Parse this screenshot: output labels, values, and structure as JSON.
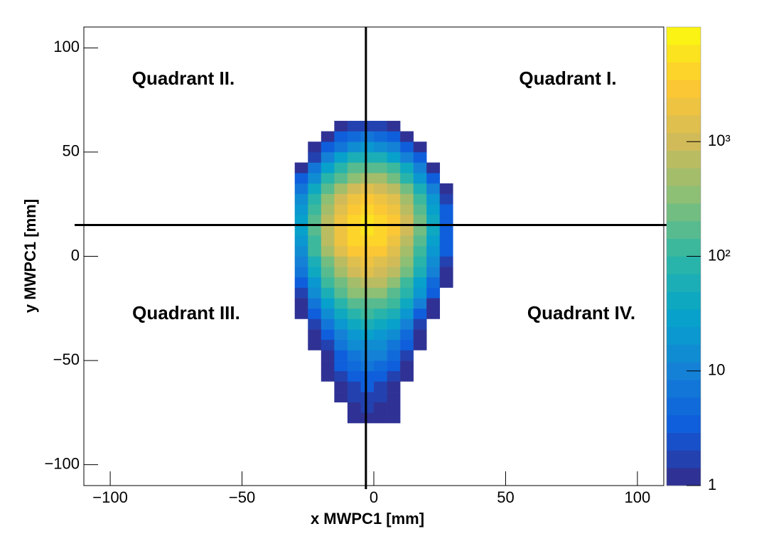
{
  "chart_data": {
    "type": "heatmap",
    "xlabel": "x MWPC1 [mm]",
    "ylabel": "y MWPC1 [mm]",
    "xlim": [
      -110,
      110
    ],
    "ylim": [
      -110,
      110
    ],
    "xticks": [
      {
        "value": -100,
        "label": "−100"
      },
      {
        "value": -50,
        "label": "−50"
      },
      0,
      50,
      100
    ],
    "yticks": [
      {
        "value": -100,
        "label": "−100"
      },
      {
        "value": -50,
        "label": "−50"
      },
      0,
      50,
      100
    ],
    "zlim": [
      1,
      10000
    ],
    "zlog": true,
    "zticks": [
      1,
      10,
      {
        "value": 100,
        "label": "10²"
      },
      {
        "value": 1000,
        "label": "10³"
      }
    ],
    "colors": [
      "#352a87",
      "#0f5cdd",
      "#1481d6",
      "#06a4ca",
      "#2eb7a4",
      "#87bf77",
      "#d1bb59",
      "#fec832",
      "#f9fb0e"
    ],
    "xbins": [
      -30,
      -25,
      -20,
      -15,
      -10,
      -5,
      0,
      5,
      10,
      15,
      20,
      25,
      30,
      35
    ],
    "ybins": [
      -80,
      -75,
      -70,
      -65,
      -60,
      -55,
      -50,
      -45,
      -40,
      -35,
      -30,
      -25,
      -20,
      -15,
      -10,
      -5,
      0,
      5,
      10,
      15,
      20,
      25,
      30,
      35,
      40,
      45,
      50,
      55,
      60,
      65
    ],
    "z": [
      [
        0,
        0,
        0,
        0,
        1,
        1,
        1,
        1,
        0,
        0,
        0,
        0,
        0
      ],
      [
        0,
        0,
        0,
        0,
        1,
        2,
        1,
        1,
        0,
        0,
        0,
        0,
        0
      ],
      [
        0,
        0,
        0,
        1,
        2,
        2,
        2,
        1,
        0,
        0,
        0,
        0,
        0
      ],
      [
        0,
        0,
        0,
        1,
        2,
        3,
        2,
        1,
        0,
        0,
        0,
        0,
        0
      ],
      [
        0,
        0,
        1,
        2,
        3,
        4,
        3,
        2,
        1,
        0,
        0,
        0,
        0
      ],
      [
        0,
        0,
        1,
        3,
        5,
        6,
        5,
        3,
        1,
        0,
        0,
        0,
        0
      ],
      [
        0,
        0,
        1,
        4,
        8,
        10,
        9,
        5,
        2,
        0,
        0,
        0,
        0
      ],
      [
        0,
        1,
        2,
        6,
        13,
        16,
        13,
        8,
        3,
        1,
        0,
        0,
        0
      ],
      [
        0,
        1,
        4,
        11,
        22,
        28,
        24,
        14,
        5,
        1,
        0,
        0,
        0
      ],
      [
        0,
        2,
        7,
        20,
        40,
        50,
        43,
        25,
        9,
        2,
        0,
        0,
        0
      ],
      [
        1,
        3,
        14,
        40,
        79,
        100,
        85,
        50,
        18,
        4,
        1,
        0,
        0
      ],
      [
        1,
        6,
        28,
        79,
        158,
        200,
        170,
        100,
        35,
        9,
        1,
        0,
        0
      ],
      [
        2,
        13,
        56,
        158,
        316,
        398,
        339,
        200,
        71,
        18,
        3,
        0,
        0
      ],
      [
        4,
        22,
        100,
        282,
        562,
        708,
        603,
        355,
        126,
        32,
        5,
        1,
        0
      ],
      [
        6,
        40,
        178,
        501,
        1000,
        1259,
        1072,
        631,
        224,
        56,
        9,
        1,
        0
      ],
      [
        10,
        63,
        282,
        794,
        1585,
        1995,
        1698,
        1000,
        355,
        89,
        14,
        2,
        0
      ],
      [
        16,
        100,
        447,
        1259,
        2512,
        3162,
        2692,
        1585,
        562,
        141,
        22,
        3,
        0
      ],
      [
        22,
        141,
        631,
        1778,
        3548,
        4467,
        3802,
        2239,
        794,
        200,
        32,
        4,
        0
      ],
      [
        25,
        158,
        708,
        1995,
        3981,
        5012,
        4266,
        2512,
        891,
        224,
        35,
        4,
        0
      ],
      [
        25,
        158,
        708,
        1995,
        3981,
        5012,
        4266,
        2512,
        891,
        224,
        35,
        4,
        0
      ],
      [
        20,
        126,
        562,
        1585,
        3162,
        3981,
        3388,
        1995,
        708,
        178,
        28,
        3,
        0
      ],
      [
        13,
        79,
        355,
        1000,
        1995,
        2512,
        2138,
        1259,
        447,
        112,
        18,
        2,
        0
      ],
      [
        6,
        40,
        178,
        501,
        1000,
        1259,
        1072,
        631,
        224,
        56,
        9,
        1,
        0
      ],
      [
        3,
        16,
        71,
        200,
        398,
        501,
        427,
        251,
        89,
        22,
        4,
        0,
        0
      ],
      [
        1,
        6,
        28,
        79,
        158,
        200,
        170,
        100,
        35,
        9,
        1,
        0,
        0
      ],
      [
        0,
        2,
        9,
        25,
        50,
        63,
        54,
        32,
        11,
        3,
        0,
        0,
        0
      ],
      [
        0,
        1,
        3,
        8,
        16,
        20,
        17,
        10,
        4,
        1,
        0,
        0,
        0
      ],
      [
        0,
        0,
        1,
        3,
        5,
        6,
        5,
        3,
        1,
        0,
        0,
        0,
        0
      ],
      [
        0,
        0,
        0,
        1,
        2,
        2,
        2,
        1,
        0,
        0,
        0,
        0,
        0
      ]
    ],
    "crosshair": {
      "x": -3,
      "y": 15
    },
    "annotations": [
      "Quadrant I.",
      "Quadrant II.",
      "Quadrant III.",
      "Quadrant IV."
    ]
  }
}
